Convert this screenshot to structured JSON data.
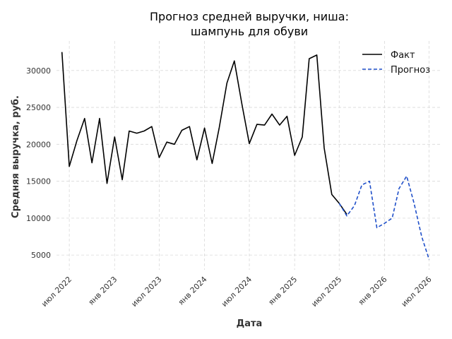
{
  "chart_data": {
    "type": "line",
    "title_lines": [
      "Прогноз средней выручки, ниша:",
      "шампунь для обуви"
    ],
    "xlabel": "Дата",
    "ylabel": "Средняя выручка, руб.",
    "xlim": [
      "2022-05-10",
      "2026-08-20"
    ],
    "ylim": [
      3000,
      34000
    ],
    "x_ticks": [
      {
        "date": "2022-07-01",
        "label": "июл 2022"
      },
      {
        "date": "2023-01-01",
        "label": "янв 2023"
      },
      {
        "date": "2023-07-01",
        "label": "июл 2023"
      },
      {
        "date": "2024-01-01",
        "label": "янв 2024"
      },
      {
        "date": "2024-07-01",
        "label": "июл 2024"
      },
      {
        "date": "2025-01-01",
        "label": "янв 2025"
      },
      {
        "date": "2025-07-01",
        "label": "июл 2025"
      },
      {
        "date": "2026-01-01",
        "label": "янв 2026"
      },
      {
        "date": "2026-07-01",
        "label": "июл 2026"
      }
    ],
    "y_ticks": [
      5000,
      10000,
      15000,
      20000,
      25000,
      30000
    ],
    "grid": true,
    "legend_position": "top-right",
    "series": [
      {
        "name": "Факт",
        "color": "#000000",
        "style": "solid",
        "x": [
          "2022-06-01",
          "2022-07-01",
          "2022-08-01",
          "2022-09-01",
          "2022-10-01",
          "2022-11-01",
          "2022-12-01",
          "2023-01-01",
          "2023-02-01",
          "2023-03-01",
          "2023-04-01",
          "2023-05-01",
          "2023-06-01",
          "2023-07-01",
          "2023-08-01",
          "2023-09-01",
          "2023-10-01",
          "2023-11-01",
          "2023-12-01",
          "2024-01-01",
          "2024-02-01",
          "2024-03-01",
          "2024-04-01",
          "2024-05-01",
          "2024-06-01",
          "2024-07-01",
          "2024-08-01",
          "2024-09-01",
          "2024-10-01",
          "2024-11-01",
          "2024-12-01",
          "2025-01-01",
          "2025-02-01",
          "2025-03-01",
          "2025-04-01",
          "2025-05-01",
          "2025-06-01",
          "2025-07-01",
          "2025-08-01"
        ],
        "y": [
          32500,
          17000,
          20500,
          23500,
          17500,
          23500,
          14700,
          21000,
          15200,
          21800,
          21500,
          21800,
          22400,
          18200,
          20300,
          20000,
          21900,
          22400,
          17900,
          22200,
          17400,
          22300,
          28300,
          31300,
          25400,
          20100,
          22700,
          22600,
          24100,
          22600,
          23800,
          18500,
          21000,
          31600,
          32100,
          19500,
          13200,
          12000,
          10500
        ]
      },
      {
        "name": "Прогноз",
        "color": "#1f4fc9",
        "style": "dashed",
        "x": [
          "2025-07-01",
          "2025-08-01",
          "2025-09-01",
          "2025-10-01",
          "2025-11-01",
          "2025-12-01",
          "2026-01-01",
          "2026-02-01",
          "2026-03-01",
          "2026-04-01",
          "2026-05-01",
          "2026-06-01",
          "2026-07-01",
          "2026-08-01"
        ],
        "y": [
          12000,
          10300,
          11700,
          14500,
          15000,
          8700,
          9300,
          10000,
          14000,
          15700,
          12000,
          7500,
          4400,
          null
        ]
      }
    ]
  }
}
